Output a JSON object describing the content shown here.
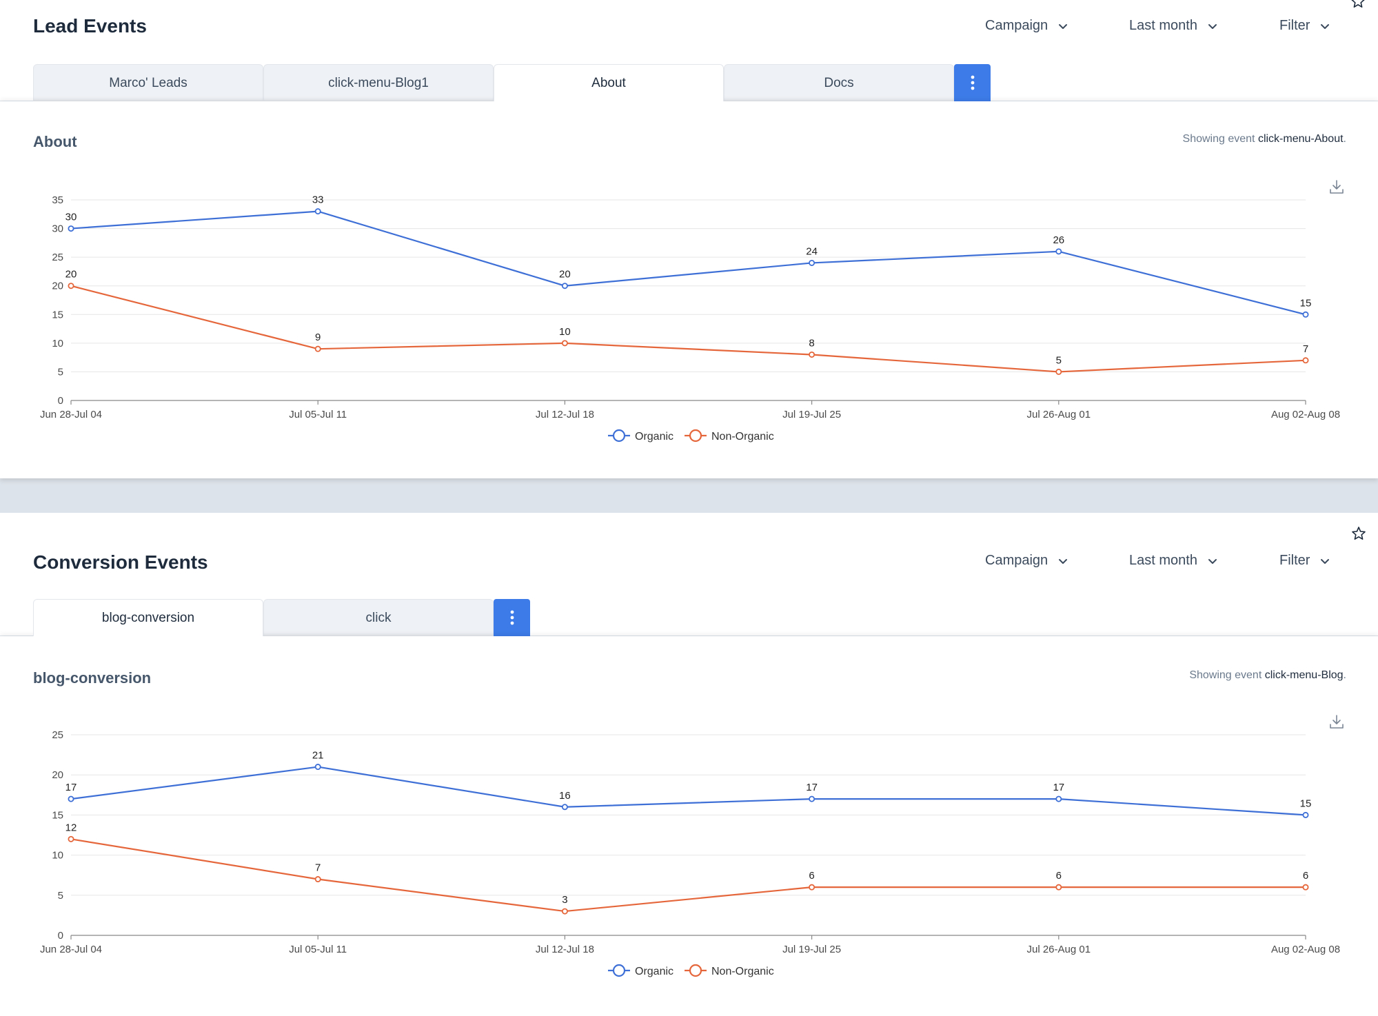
{
  "colors": {
    "organic": "#3d6fd6",
    "non_organic": "#e5663a",
    "accent": "#3d7be8",
    "page_bg": "#dde3ea"
  },
  "lead_events": {
    "title": "Lead Events",
    "controls": {
      "campaign": "Campaign",
      "period": "Last month",
      "filter": "Filter"
    },
    "tabs": [
      {
        "label": "Marco' Leads",
        "active": false
      },
      {
        "label": "click-menu-Blog1",
        "active": false
      },
      {
        "label": "About",
        "active": true
      },
      {
        "label": "Docs",
        "active": false
      }
    ],
    "card": {
      "title": "About",
      "showing_prefix": "Showing event",
      "showing_event": "click-menu-About",
      "showing_suffix": "."
    },
    "chart_data": {
      "type": "line",
      "categories": [
        "Jun 28-Jul 04",
        "Jul 05-Jul 11",
        "Jul 12-Jul 18",
        "Jul 19-Jul 25",
        "Jul 26-Aug 01",
        "Aug 02-Aug 08"
      ],
      "series": [
        {
          "name": "Organic",
          "values": [
            30,
            33,
            20,
            24,
            26,
            15
          ]
        },
        {
          "name": "Non-Organic",
          "values": [
            20,
            9,
            10,
            8,
            5,
            7
          ]
        }
      ],
      "yticks": [
        0,
        5,
        10,
        15,
        20,
        25,
        30,
        35
      ],
      "ylim": [
        0,
        35
      ],
      "grid": true,
      "legend_position": "bottom-center"
    }
  },
  "conversion_events": {
    "title": "Conversion Events",
    "controls": {
      "campaign": "Campaign",
      "period": "Last month",
      "filter": "Filter"
    },
    "tabs": [
      {
        "label": "blog-conversion",
        "active": true
      },
      {
        "label": "click",
        "active": false
      }
    ],
    "card": {
      "title": "blog-conversion",
      "showing_prefix": "Showing event",
      "showing_event": "click-menu-Blog",
      "showing_suffix": "."
    },
    "chart_data": {
      "type": "line",
      "categories": [
        "Jun 28-Jul 04",
        "Jul 05-Jul 11",
        "Jul 12-Jul 18",
        "Jul 19-Jul 25",
        "Jul 26-Aug 01",
        "Aug 02-Aug 08"
      ],
      "series": [
        {
          "name": "Organic",
          "values": [
            17,
            21,
            16,
            17,
            17,
            15
          ]
        },
        {
          "name": "Non-Organic",
          "values": [
            12,
            7,
            3,
            6,
            6,
            6
          ]
        }
      ],
      "yticks": [
        0,
        5,
        10,
        15,
        20,
        25
      ],
      "ylim": [
        0,
        25
      ],
      "grid": true,
      "legend_position": "bottom-center"
    }
  }
}
